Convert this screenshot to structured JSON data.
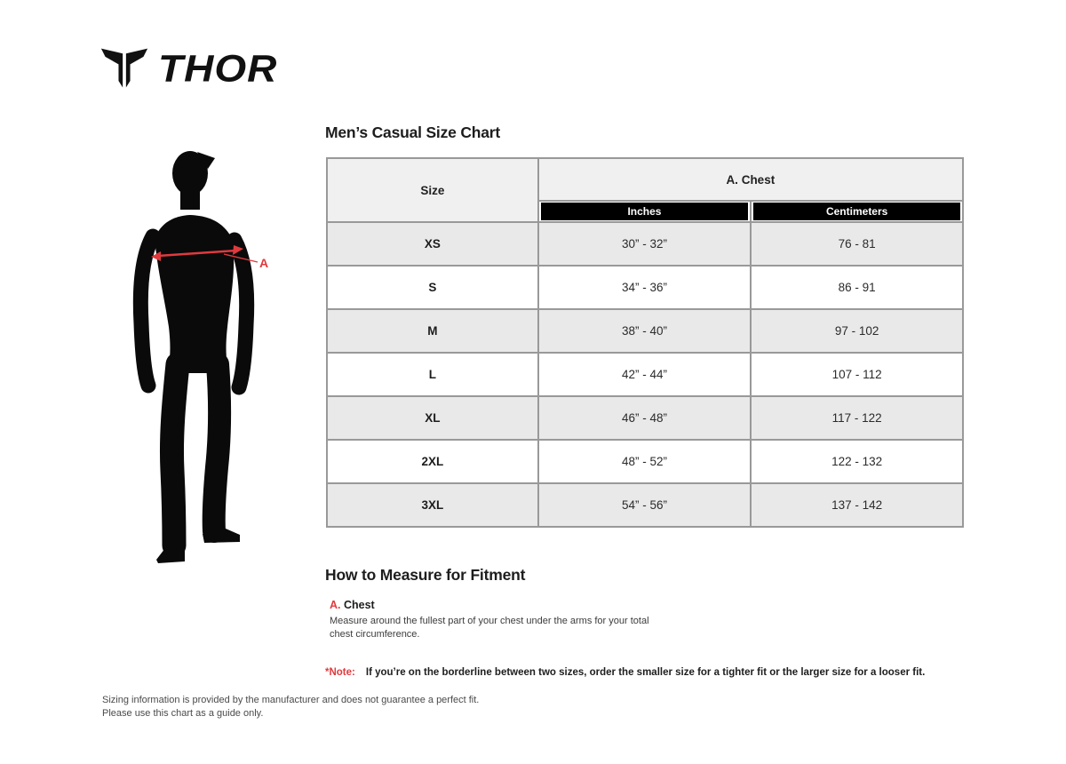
{
  "brand": {
    "logo_text": "THOR",
    "logo_icon": "thor-horns-icon"
  },
  "title": "Men’s Casual Size Chart",
  "figure": {
    "label": "A"
  },
  "table": {
    "size_header": "Size",
    "group_header": "A. Chest",
    "unit_headers": [
      "Inches",
      "Centimeters"
    ],
    "rows": [
      {
        "size": "XS",
        "inches": "30” - 32”",
        "centimeters": "76 - 81"
      },
      {
        "size": "S",
        "inches": "34” - 36”",
        "centimeters": "86 - 91"
      },
      {
        "size": "M",
        "inches": "38” - 40”",
        "centimeters": "97 - 102"
      },
      {
        "size": "L",
        "inches": "42” - 44”",
        "centimeters": "107 - 112"
      },
      {
        "size": "XL",
        "inches": "46” - 48”",
        "centimeters": "117 - 122"
      },
      {
        "size": "2XL",
        "inches": "48” - 52”",
        "centimeters": "122 - 132"
      },
      {
        "size": "3XL",
        "inches": "54” - 56”",
        "centimeters": "137 - 142"
      }
    ]
  },
  "how_to_measure": {
    "heading": "How to Measure for Fitment",
    "items": [
      {
        "letter": "A.",
        "name": "Chest",
        "description": "Measure around the fullest part of your chest under the arms for your total chest circumference."
      }
    ],
    "note_label": "*Note:",
    "note_text": "If you’re on the borderline between two sizes, order the smaller size for a tighter fit or the larger size for a looser fit."
  },
  "footer": {
    "line1": "Sizing information is provided by the manufacturer and does not guarantee a perfect fit.",
    "line2": "Please use this chart as a guide only."
  },
  "colors": {
    "accent_red": "#e03a3e",
    "row_alt_gray": "#e9e9e9",
    "header_gray": "#f0f0f0",
    "border_gray": "#999999",
    "bar_black": "#000000"
  }
}
